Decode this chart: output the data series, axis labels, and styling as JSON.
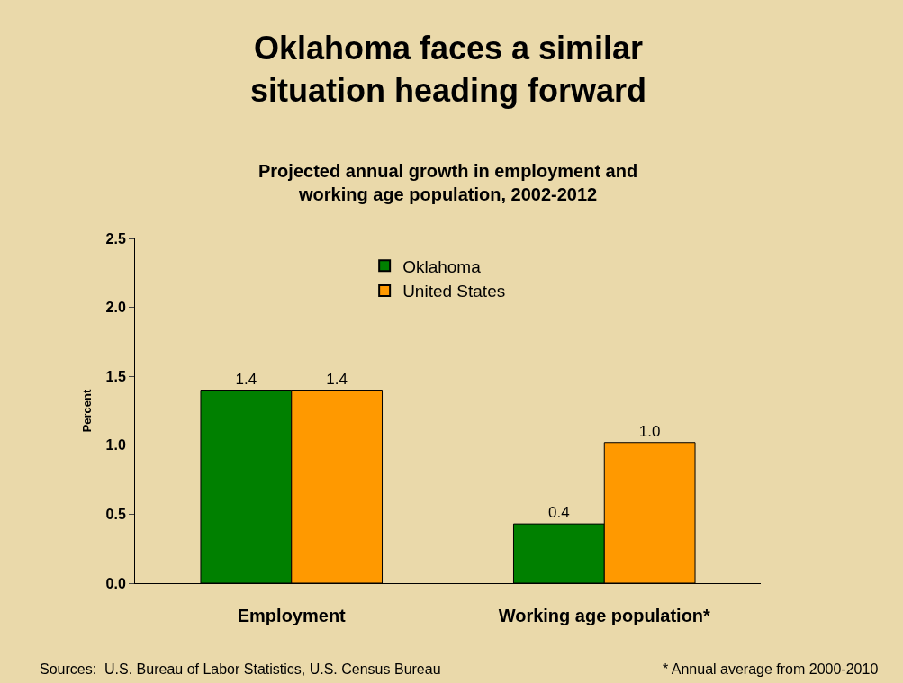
{
  "chart_data": {
    "type": "bar",
    "title": "Oklahoma faces a similar\nsituation heading forward",
    "subtitle": "Projected annual growth in employment and\nworking age population, 2002-2012",
    "ylabel": "Percent",
    "categories": [
      "Employment",
      "Working age population*"
    ],
    "series": [
      {
        "name": "Oklahoma",
        "color": "#008000",
        "values": [
          1.4,
          0.43
        ],
        "value_labels": [
          "1.4",
          "0.4"
        ]
      },
      {
        "name": "United States",
        "color": "#ff9900",
        "values": [
          1.4,
          1.02
        ],
        "value_labels": [
          "1.4",
          "1.0"
        ]
      }
    ],
    "ylim": [
      0,
      2.5
    ],
    "yticks": [
      {
        "value": 0,
        "label": "0.0"
      },
      {
        "value": 0.5,
        "label": "0.5"
      },
      {
        "value": 1,
        "label": "1.0"
      },
      {
        "value": 1.5,
        "label": "1.5"
      },
      {
        "value": 2,
        "label": "2.0"
      },
      {
        "value": 2.5,
        "label": "2.5"
      }
    ],
    "grid": false,
    "legend": "top",
    "annotations": [
      "Sources:  U.S. Bureau of Labor Statistics, U.S. Census Bureau",
      "* Annual average from 2000-2010"
    ]
  }
}
